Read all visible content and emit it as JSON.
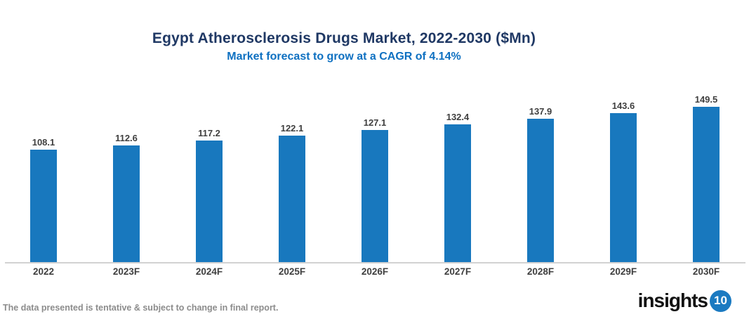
{
  "header": {
    "title": "Egypt Atherosclerosis Drugs Market, 2022-2030 ($Mn)",
    "subtitle": "Market forecast to grow at a CAGR of 4.14%"
  },
  "chart_data": {
    "type": "bar",
    "categories": [
      "2022",
      "2023F",
      "2024F",
      "2025F",
      "2026F",
      "2027F",
      "2028F",
      "2029F",
      "2030F"
    ],
    "values": [
      108.1,
      112.6,
      117.2,
      122.1,
      127.1,
      132.4,
      137.9,
      143.6,
      149.5
    ],
    "title": "Egypt Atherosclerosis Drugs Market, 2022-2030 ($Mn)",
    "subtitle": "Market forecast to grow at a CAGR of 4.14%",
    "xlabel": "",
    "ylabel": "",
    "ylim": [
      0,
      160
    ],
    "grid": false,
    "legend": "none",
    "value_labels_shown": true,
    "bar_color": "#1878BE"
  },
  "footer": {
    "note": "The data presented is tentative & subject to change in final report."
  },
  "logo": {
    "text": "insights",
    "badge": "10",
    "badge_color": "#1B7AC1"
  },
  "colors": {
    "title": "#1F3864",
    "subtitle": "#0E70C1",
    "bar": "#1878BE",
    "axis_line": "#D2D2D2",
    "data_label": "#3F3F3F",
    "footer_text": "#8C8C8C"
  }
}
